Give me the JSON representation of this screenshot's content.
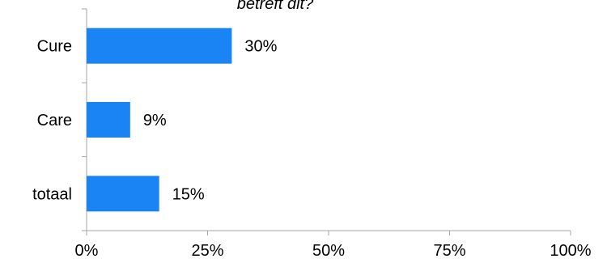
{
  "chart_data": {
    "type": "bar",
    "orientation": "horizontal",
    "title": "betreft dit?",
    "categories": [
      "Cure",
      "Care",
      "totaal"
    ],
    "values": [
      30,
      9,
      15
    ],
    "value_labels": [
      "30%",
      "9%",
      "15%"
    ],
    "xlim": [
      0,
      100
    ],
    "xticks": [
      0,
      25,
      50,
      75,
      100
    ],
    "xtick_labels": [
      "0%",
      "25%",
      "50%",
      "75%",
      "100%"
    ],
    "grid": false,
    "bar_color": "#1a84f5",
    "axis_color": "#a6a6a6"
  }
}
